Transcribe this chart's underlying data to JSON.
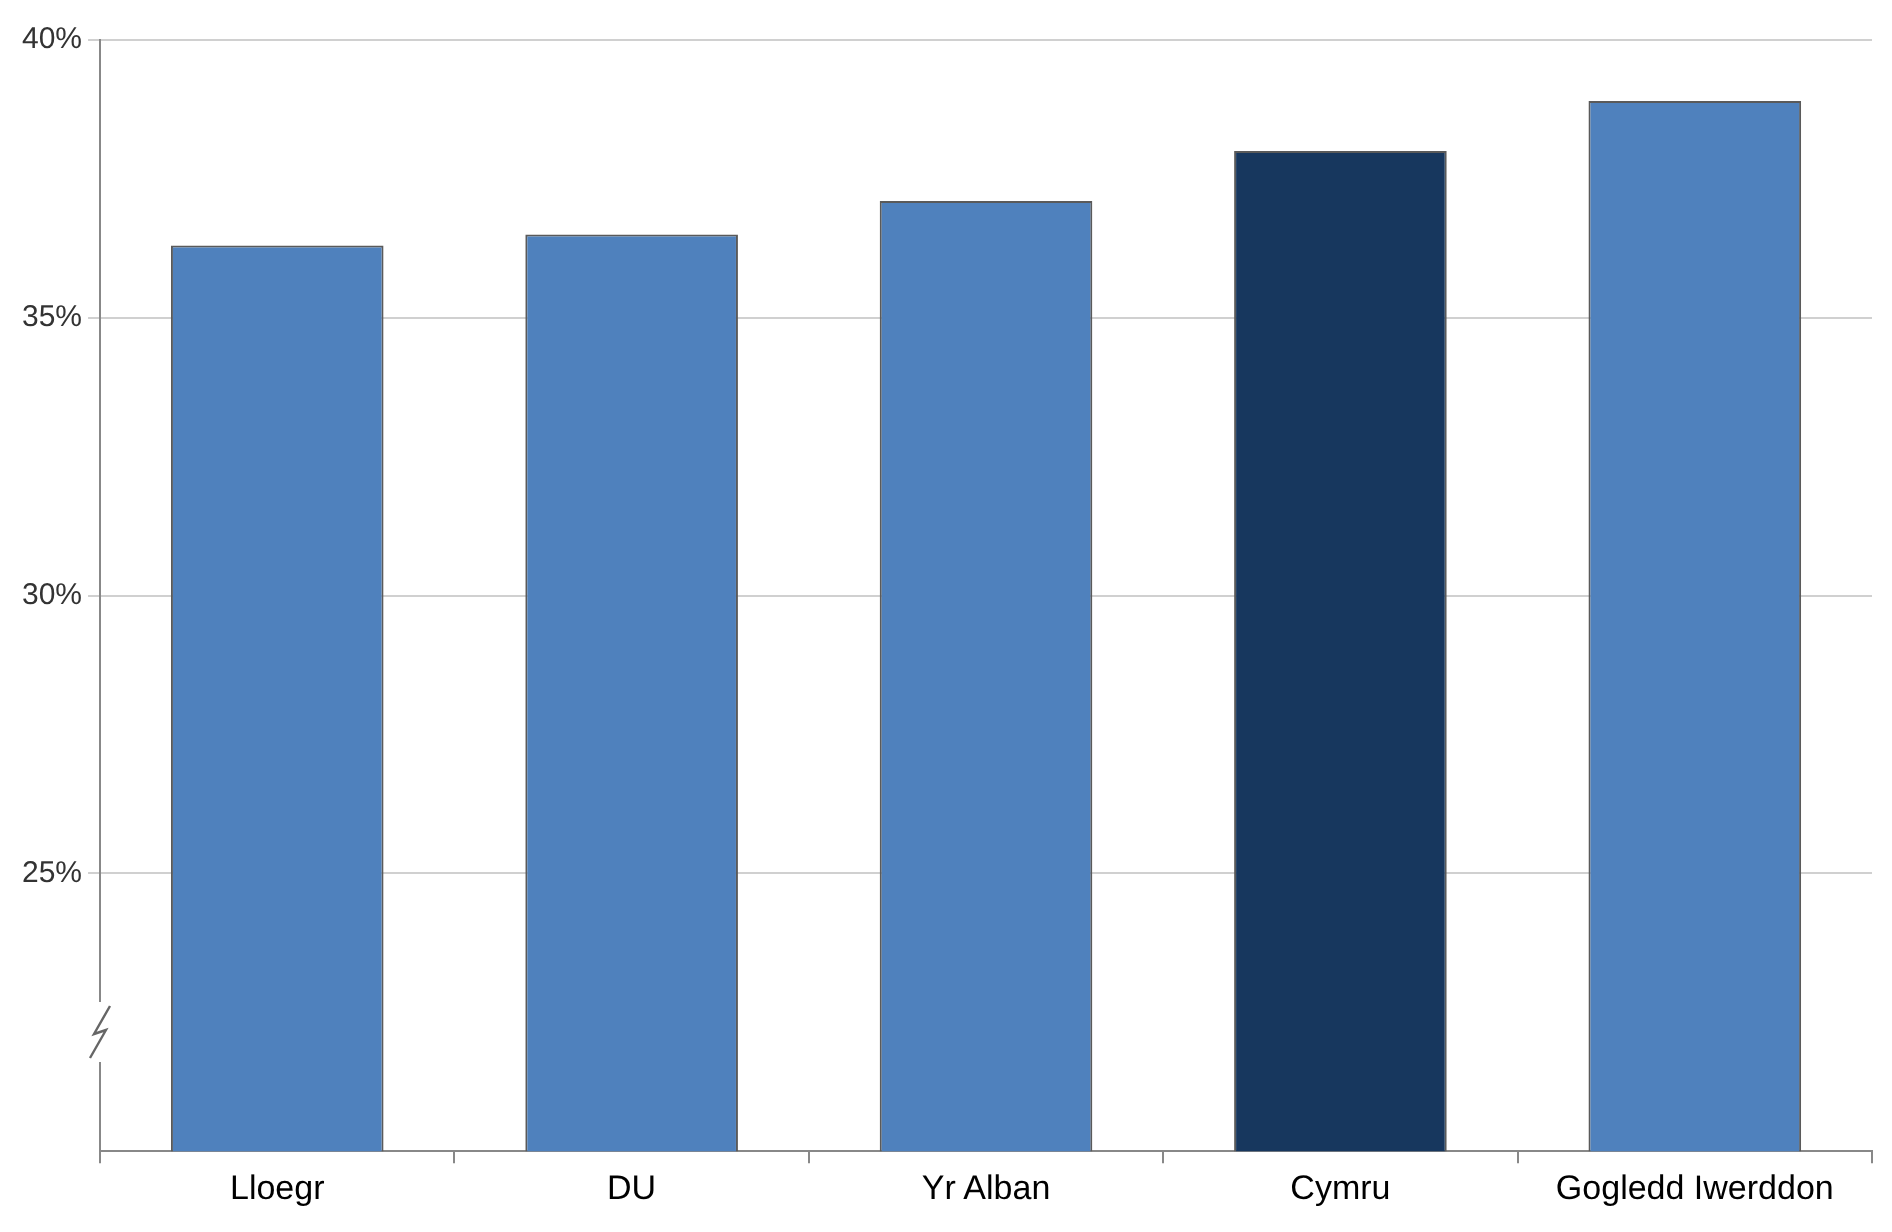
{
  "chart_data": {
    "type": "bar",
    "categories": [
      "Lloegr",
      "DU",
      "Yr Alban",
      "Cymru",
      "Gogledd Iwerddon"
    ],
    "values": [
      36.3,
      36.5,
      37.1,
      38.0,
      38.9
    ],
    "colors": [
      "#4f81bd",
      "#4f81bd",
      "#4f81bd",
      "#17375e",
      "#4f81bd"
    ],
    "ylim": [
      20,
      40
    ],
    "yticks": [
      {
        "value": 25,
        "label": "25%"
      },
      {
        "value": 30,
        "label": "30%"
      },
      {
        "value": 35,
        "label": "35%"
      },
      {
        "value": 40,
        "label": "40%"
      }
    ],
    "grid": "y"
  }
}
